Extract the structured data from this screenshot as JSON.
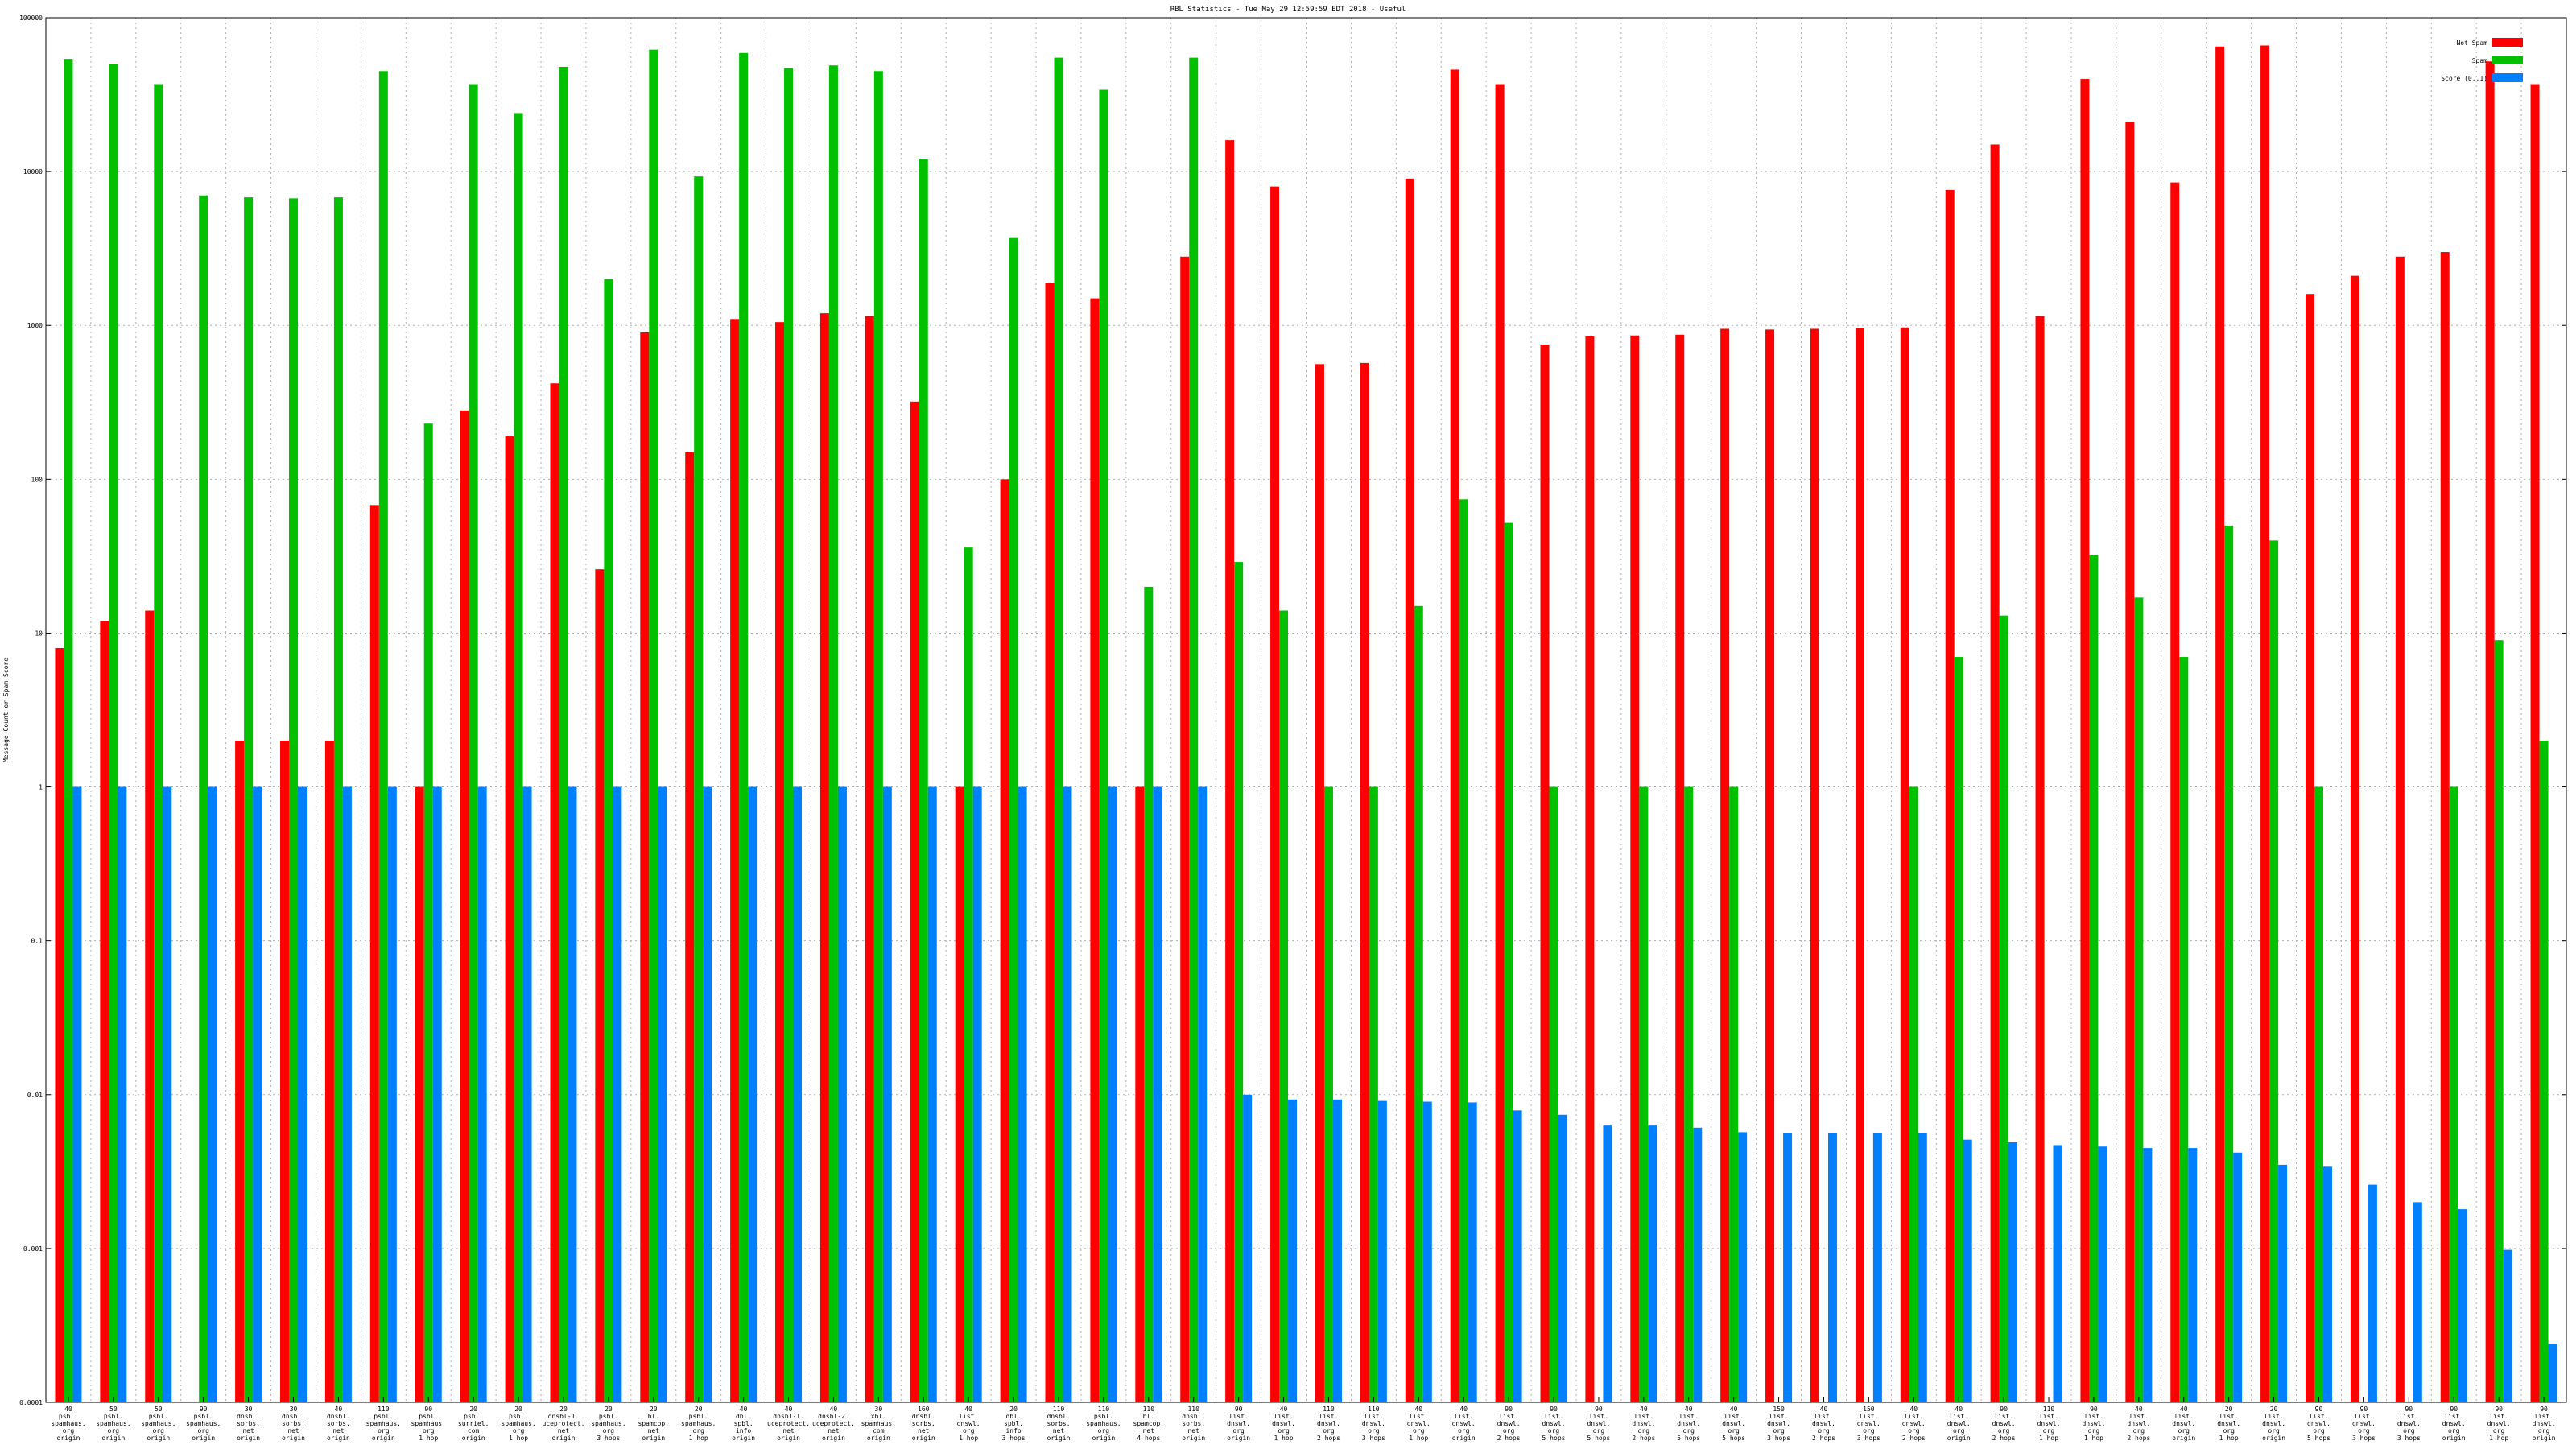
{
  "chart_data": {
    "type": "bar",
    "title": "RBL Statistics - Tue May 29 12:59:59 EDT 2018 - Useful",
    "xlabel": "",
    "ylabel": "Message Count or Spam Score",
    "yscale": "log",
    "ylim": [
      0.0001,
      100000
    ],
    "yticks": [
      {
        "value": 0.0001,
        "label": "0.0001"
      },
      {
        "value": 0.001,
        "label": "0.001"
      },
      {
        "value": 0.01,
        "label": "0.01"
      },
      {
        "value": 0.1,
        "label": "0.1"
      },
      {
        "value": 1,
        "label": "1"
      },
      {
        "value": 10,
        "label": "10"
      },
      {
        "value": 100,
        "label": "100"
      },
      {
        "value": 1000,
        "label": "1000"
      },
      {
        "value": 10000,
        "label": "10000"
      },
      {
        "value": 100000,
        "label": "100000"
      }
    ],
    "grid": true,
    "legend_position": "top-right",
    "categories": [
      "40\npsbl.\nspamhaus.\norg\norigin",
      "50\npsbl.\nspamhaus.\norg\norigin",
      "50\npsbl.\nspamhaus.\norg\norigin",
      "90\npsbl.\nspamhaus.\norg\norigin",
      "30\ndnsbl.\nsorbs.\nnet\norigin",
      "30\ndnsbl.\nsorbs.\nnet\norigin",
      "40\ndnsbl.\nsorbs.\nnet\norigin",
      "110\npsbl.\nspamhaus.\norg\norigin",
      "90\npsbl.\nspamhaus.\norg\n1 hop",
      "20\npsbl.\nsurriel.\ncom\norigin",
      "20\npsbl.\nspamhaus.\norg\n1 hop",
      "20\ndnsbl-1.\nuceprotect.\nnet\norigin",
      "20\npsbl.\nspamhaus.\norg\n3 hops",
      "20\nbl.\nspamcop.\nnet\norigin",
      "20\npsbl.\nspamhaus.\norg\n1 hop",
      "40\ndbl.\nspbl.\ninfo\norigin",
      "40\ndnsbl-1.\nuceprotect.\nnet\norigin",
      "40\ndnsbl-2.\nuceprotect.\nnet\norigin",
      "30\nxbl.\nspamhaus.\ncom\norigin",
      "160\ndnsbl.\nsorbs.\nnet\norigin",
      "40\nlist.\ndnswl.\norg\n1 hop",
      "20\ndbl.\nspbl.\ninfo\n3 hops",
      "110\ndnsbl.\nsorbs.\nnet\norigin",
      "110\npsbl.\nspamhaus.\norg\norigin",
      "110\nbl.\nspamcop.\nnet\n4 hops",
      "110\ndnsbl.\nsorbs.\nnet\norigin",
      "90\nlist.\ndnswl.\norg\norigin",
      "40\nlist.\ndnswl.\norg\n1 hop",
      "110\nlist.\ndnswl.\norg\n2 hops",
      "110\nlist.\ndnswl.\norg\n3 hops",
      "40\nlist.\ndnswl.\norg\n1 hop",
      "40\nlist.\ndnswl.\norg\norigin",
      "90\nlist.\ndnswl.\norg\n2 hops",
      "90\nlist.\ndnswl.\norg\n5 hops",
      "90\nlist.\ndnswl.\norg\n5 hops",
      "40\nlist.\ndnswl.\norg\n2 hops",
      "40\nlist.\ndnswl.\norg\n5 hops",
      "40\nlist.\ndnswl.\norg\n5 hops",
      "150\nlist.\ndnswl.\norg\n3 hops",
      "40\nlist.\ndnswl.\norg\n2 hops",
      "150\nlist.\ndnswl.\norg\n3 hops",
      "40\nlist.\ndnswl.\norg\n2 hops",
      "40\nlist.\ndnswl.\norg\norigin",
      "90\nlist.\ndnswl.\norg\n2 hops",
      "110\nlist.\ndnswl.\norg\n1 hop",
      "90\nlist.\ndnswl.\norg\n1 hop",
      "40\nlist.\ndnswl.\norg\n2 hops",
      "40\nlist.\ndnswl.\norg\norigin",
      "20\nlist.\ndnswl.\norg\n1 hop",
      "20\nlist.\ndnswl.\norg\norigin",
      "90\nlist.\ndnswl.\norg\n5 hops",
      "90\nlist.\ndnswl.\norg\n3 hops",
      "90\nlist.\ndnswl.\norg\n3 hops",
      "90\nlist.\ndnswl.\norg\norigin",
      "90\nlist.\ndnswl.\norg\n1 hop",
      "90\nlist.\ndnswl.\norg\norigin"
    ],
    "series": [
      {
        "name": "Not Spam",
        "color": "#ff0000",
        "values": [
          8,
          12,
          14,
          null,
          2,
          2,
          2,
          68,
          1,
          280,
          190,
          420,
          26,
          900,
          150,
          1100,
          1050,
          1200,
          1150,
          320,
          1,
          100,
          1900,
          1500,
          1,
          2800,
          16000,
          8000,
          560,
          570,
          9000,
          46000,
          37000,
          750,
          850,
          860,
          870,
          950,
          940,
          950,
          960,
          970,
          7600,
          15000,
          1150,
          40000,
          21000,
          8500,
          65000,
          66000,
          1600,
          2100,
          2800,
          3000,
          52000,
          37000
        ]
      },
      {
        "name": "Spam",
        "color": "#00c000",
        "values": [
          54000,
          50000,
          37000,
          7000,
          6800,
          6700,
          6800,
          45000,
          230,
          37000,
          24000,
          48000,
          2000,
          62000,
          9300,
          59000,
          47000,
          49000,
          45000,
          12000,
          36,
          3700,
          55000,
          34000,
          20,
          55000,
          29,
          14,
          1,
          1,
          15,
          74,
          52,
          1,
          null,
          1,
          1,
          1,
          null,
          null,
          null,
          1,
          7,
          13,
          null,
          32,
          17,
          7,
          50,
          40,
          1,
          null,
          null,
          1,
          9,
          2
        ]
      },
      {
        "name": "Score (0..1)",
        "color": "#0080ff",
        "values": [
          1,
          1,
          1,
          1,
          1,
          1,
          1,
          1,
          1,
          1,
          1,
          1,
          1,
          1,
          1,
          1,
          1,
          1,
          1,
          1,
          1,
          1,
          1,
          1,
          1,
          1,
          0.01,
          0.0093,
          0.0093,
          0.0091,
          0.009,
          0.0089,
          0.0079,
          0.0074,
          0.0063,
          0.0063,
          0.0061,
          0.0057,
          0.0056,
          0.0056,
          0.0056,
          0.0056,
          0.0051,
          0.0049,
          0.0047,
          0.0046,
          0.0045,
          0.0045,
          0.0042,
          0.0035,
          0.0034,
          0.0026,
          0.002,
          0.0018,
          0.00098,
          0.00024
        ]
      }
    ]
  }
}
